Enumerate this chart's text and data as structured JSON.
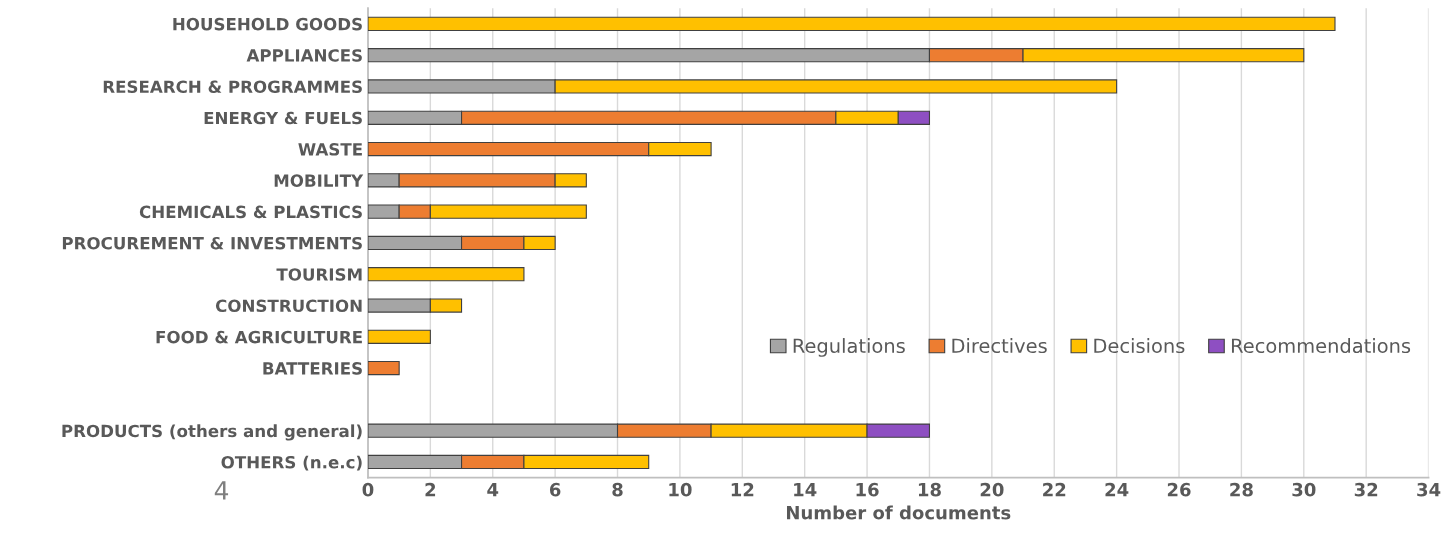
{
  "chart_data": {
    "type": "bar",
    "orientation": "horizontal",
    "stacked": true,
    "categories": [
      "HOUSEHOLD GOODS",
      "APPLIANCES",
      "RESEARCH & PROGRAMMES",
      "ENERGY & FUELS",
      "WASTE",
      "MOBILITY",
      "CHEMICALS & PLASTICS",
      "PROCUREMENT & INVESTMENTS",
      "TOURISM",
      "CONSTRUCTION",
      "FOOD & AGRICULTURE",
      "BATTERIES",
      null,
      "PRODUCTS (others and general)",
      "OTHERS (n.e.c)"
    ],
    "series": [
      {
        "name": "Regulations",
        "color": "#a5a5a5",
        "values": [
          null,
          18,
          6,
          3,
          null,
          1,
          1,
          3,
          null,
          2,
          null,
          null,
          null,
          8,
          3
        ]
      },
      {
        "name": "Directives",
        "color": "#ed7d31",
        "values": [
          null,
          3,
          null,
          12,
          9,
          5,
          1,
          2,
          null,
          null,
          null,
          1,
          null,
          3,
          2
        ]
      },
      {
        "name": "Decisions",
        "color": "#ffc000",
        "values": [
          31,
          9,
          18,
          2,
          2,
          1,
          5,
          1,
          5,
          1,
          2,
          null,
          null,
          5,
          4
        ]
      },
      {
        "name": "Recommendations",
        "color": "#8e4fc2",
        "values": [
          null,
          null,
          null,
          1,
          null,
          null,
          null,
          null,
          null,
          null,
          null,
          null,
          null,
          2,
          null
        ]
      }
    ],
    "xlim": [
      0,
      34
    ],
    "xticks": [
      0,
      2,
      4,
      6,
      8,
      10,
      12,
      14,
      16,
      18,
      20,
      22,
      24,
      26,
      28,
      30,
      32,
      34
    ],
    "xlabel": "Number of documents",
    "grid": "x",
    "legend": "bottom right",
    "annotations": [
      "4"
    ]
  }
}
